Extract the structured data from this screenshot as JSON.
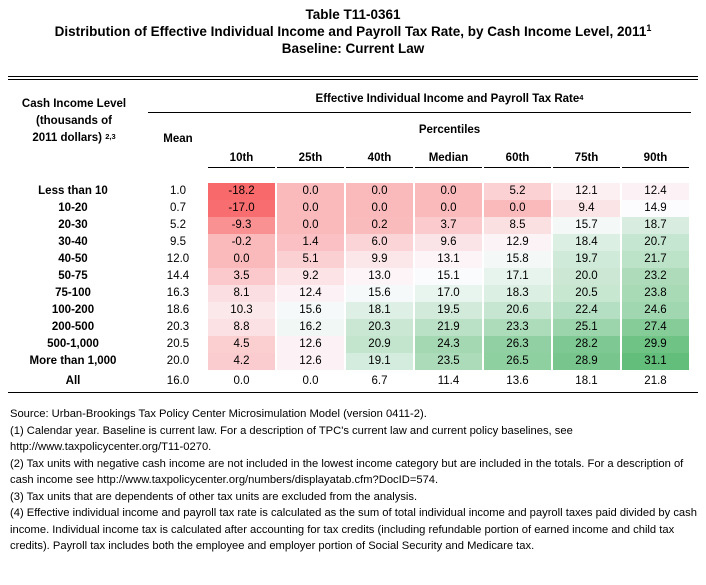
{
  "table_id": "Table T11-0361",
  "title": "Distribution of Effective Individual Income and Payroll Tax Rate, by Cash Income Level, 2011",
  "title_footnote": "1",
  "baseline": "Baseline: Current Law",
  "headers": {
    "row_label_lines": [
      "Cash Income Level",
      "(thousands of",
      "2011 dollars)"
    ],
    "row_label_footnote": "2,3",
    "mean": "Mean",
    "group": "Effective Individual Income and Payroll Tax Rate",
    "group_footnote": "4",
    "percentiles": "Percentiles",
    "columns": [
      "10th",
      "25th",
      "40th",
      "Median",
      "60th",
      "75th",
      "90th"
    ]
  },
  "rows": [
    {
      "label": "Less than 10",
      "mean": "1.0",
      "cells": [
        "-18.2",
        "0.0",
        "0.0",
        "0.0",
        "5.2",
        "12.1",
        "12.4"
      ]
    },
    {
      "label": "10-20",
      "mean": "0.7",
      "cells": [
        "-17.0",
        "0.0",
        "0.0",
        "0.0",
        "0.0",
        "9.4",
        "14.9"
      ]
    },
    {
      "label": "20-30",
      "mean": "5.2",
      "cells": [
        "-9.3",
        "0.0",
        "0.2",
        "3.7",
        "8.5",
        "15.7",
        "18.7"
      ]
    },
    {
      "label": "30-40",
      "mean": "9.5",
      "cells": [
        "-0.2",
        "1.4",
        "6.0",
        "9.6",
        "12.9",
        "18.4",
        "20.7"
      ]
    },
    {
      "label": "40-50",
      "mean": "12.0",
      "cells": [
        "0.0",
        "5.1",
        "9.9",
        "13.1",
        "15.8",
        "19.7",
        "21.7"
      ]
    },
    {
      "label": "50-75",
      "mean": "14.4",
      "cells": [
        "3.5",
        "9.2",
        "13.0",
        "15.1",
        "17.1",
        "20.0",
        "23.2"
      ]
    },
    {
      "label": "75-100",
      "mean": "16.3",
      "cells": [
        "8.1",
        "12.4",
        "15.6",
        "17.0",
        "18.3",
        "20.5",
        "23.8"
      ]
    },
    {
      "label": "100-200",
      "mean": "18.6",
      "cells": [
        "10.3",
        "15.6",
        "18.1",
        "19.5",
        "20.6",
        "22.4",
        "24.6"
      ]
    },
    {
      "label": "200-500",
      "mean": "20.3",
      "cells": [
        "8.8",
        "16.2",
        "20.3",
        "21.9",
        "23.3",
        "25.1",
        "27.4"
      ]
    },
    {
      "label": "500-1,000",
      "mean": "20.5",
      "cells": [
        "4.5",
        "12.6",
        "20.9",
        "24.3",
        "26.3",
        "28.2",
        "29.9"
      ]
    },
    {
      "label": "More than 1,000",
      "mean": "20.0",
      "cells": [
        "4.2",
        "12.6",
        "19.1",
        "23.5",
        "26.5",
        "28.9",
        "31.1"
      ]
    },
    {
      "label": "All",
      "mean": "16.0",
      "cells": [
        "0.0",
        "0.0",
        "6.7",
        "11.4",
        "13.6",
        "18.1",
        "21.8"
      ],
      "shaded": false
    }
  ],
  "notes": [
    "Source: Urban-Brookings Tax Policy Center Microsimulation Model (version 0411-2).",
    "(1) Calendar year. Baseline is current law. For a description of TPC's current law and current policy baselines, see http://www.taxpolicycenter.org/T11-0270.",
    "(2) Tax units with negative cash income are not included in the lowest income category but are included in the totals. For a description of cash income see http://www.taxpolicycenter.org/numbers/displayatab.cfm?DocID=574.",
    "(3) Tax units that are dependents of other tax units are excluded from the analysis.",
    "(4) Effective individual income and payroll tax rate is calculated as the sum of total individual income and payroll taxes paid divided by cash income. Individual income tax is calculated after accounting for tax credits (including refundable portion of earned income and child tax credits). Payroll tax includes both the employee and employer portion of Social Security and Medicare tax."
  ],
  "colors": {
    "red": "#f8696b",
    "white": "#fcfcff",
    "green": "#63be7b"
  }
}
